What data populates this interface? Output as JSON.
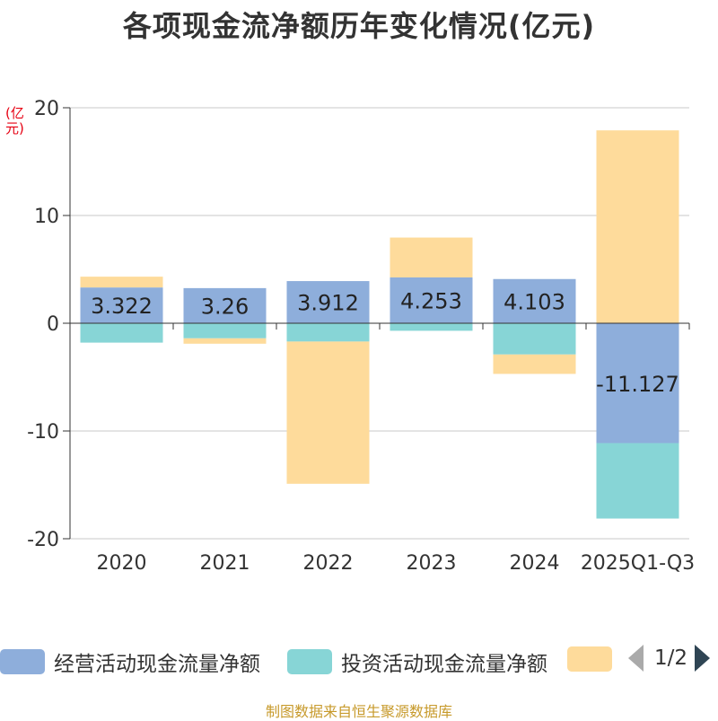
{
  "chart_data": {
    "type": "bar",
    "stacked": true,
    "title": "各项现金流净额历年变化情况(亿元)",
    "ylabel": "(亿元)",
    "ylim": [
      -20,
      20
    ],
    "yticks": [
      20,
      10,
      0,
      -10,
      -20
    ],
    "categories": [
      "2020",
      "2021",
      "2022",
      "2023",
      "2024",
      "2025Q1-Q3"
    ],
    "series": [
      {
        "name": "经营活动现金流量净额",
        "color": "#8eaedb",
        "values": [
          3.322,
          3.26,
          3.912,
          4.253,
          4.103,
          -11.127
        ],
        "labels": [
          "3.322",
          "3.26",
          "3.912",
          "4.253",
          "4.103",
          "-11.127"
        ]
      },
      {
        "name": "投资活动现金流量净额",
        "color": "#87d5d6",
        "values": [
          -1.8,
          -1.4,
          -1.7,
          -0.7,
          -2.9,
          -7.0
        ]
      },
      {
        "name": "",
        "color": "#fedb9b",
        "values": [
          1.0,
          -0.5,
          -13.2,
          3.7,
          -1.8,
          17.9
        ]
      }
    ],
    "legend": {
      "position": "bottom",
      "page": "1/2"
    }
  },
  "source": "制图数据来自恒生聚源数据库"
}
